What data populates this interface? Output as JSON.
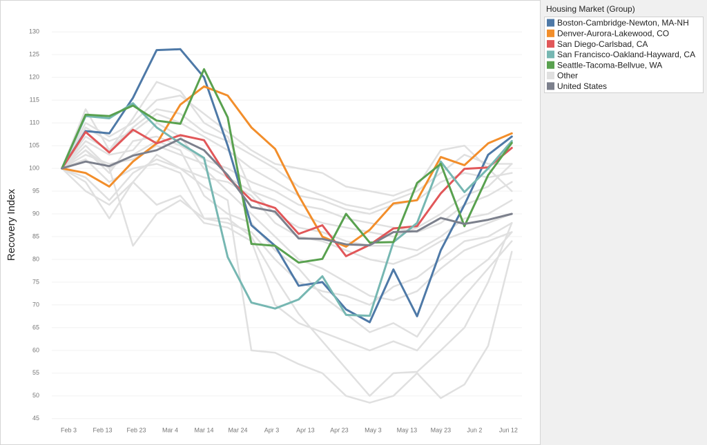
{
  "chart_data": {
    "type": "line",
    "y_axis_label": "Recovery Index",
    "legend_title": "Housing Market (Group)",
    "legend": "right",
    "grid": true,
    "x": [
      "Feb 1",
      "Feb 8",
      "Feb 15",
      "Feb 22",
      "Feb 29",
      "Mar 7",
      "Mar 14",
      "Mar 21",
      "Mar 28",
      "Apr 4",
      "Apr 11",
      "Apr 18",
      "Apr 25",
      "May 2",
      "May 9",
      "May 16",
      "May 23",
      "May 30",
      "Jun 6",
      "Jun 13"
    ],
    "xlim": [
      "Jan 29",
      "Jun 16"
    ],
    "xticks": [
      "Feb 3",
      "Feb 13",
      "Feb 23",
      "Mar 4",
      "Mar 14",
      "Mar 24",
      "Apr 3",
      "Apr 13",
      "Apr 23",
      "May 3",
      "May 13",
      "May 23",
      "Jun 2",
      "Jun 12"
    ],
    "ylim": [
      43,
      132
    ],
    "yticks": [
      45,
      50,
      55,
      60,
      65,
      70,
      75,
      80,
      85,
      90,
      95,
      100,
      105,
      110,
      115,
      120,
      125,
      130
    ],
    "series": [
      {
        "name": "Boston-Cambridge-Newton, MA-NH",
        "color": "#4e79a7",
        "values": [
          100,
          108.2,
          107.7,
          115.5,
          126,
          126.2,
          120,
          105,
          87.5,
          83,
          74.2,
          75,
          69,
          66.2,
          77.8,
          67.5,
          82,
          92,
          103,
          107
        ]
      },
      {
        "name": "Denver-Aurora-Lakewood, CO",
        "color": "#f28e2b",
        "values": [
          100,
          99,
          96,
          101.5,
          105.5,
          114,
          118,
          116,
          109,
          104.3,
          94,
          85,
          82.8,
          86.5,
          92.3,
          93,
          102.5,
          100.7,
          105.5,
          107.7
        ]
      },
      {
        "name": "San Diego-Carlsbad, CA",
        "color": "#e15759",
        "values": [
          100,
          108,
          103.5,
          108.5,
          105.5,
          107.3,
          106.2,
          98,
          93,
          91.3,
          85.6,
          87.5,
          80.7,
          83.2,
          86.8,
          87.3,
          94.5,
          99.9,
          100.2,
          104.5
        ]
      },
      {
        "name": "San Francisco-Oakland-Hayward, CA",
        "color": "#76b7b2",
        "values": [
          100,
          111.5,
          111,
          114.3,
          109,
          105.5,
          102.3,
          80.5,
          70.5,
          69.2,
          71.2,
          76.3,
          67.8,
          67.6,
          83.8,
          88,
          101.5,
          94.8,
          100,
          106
        ]
      },
      {
        "name": "Seattle-Tacoma-Bellvue, WA",
        "color": "#59a14f",
        "values": [
          100,
          111.8,
          111.5,
          113.8,
          110.5,
          109.8,
          121.8,
          111.2,
          83.4,
          83,
          79.3,
          80.1,
          90,
          83.7,
          83.8,
          96.8,
          101,
          87.3,
          98.5,
          105.6
        ]
      },
      {
        "name": "Other",
        "color": "#e0e0e0",
        "values": [
          100,
          113,
          104,
          111,
          119,
          117,
          110,
          107,
          95,
          93,
          90,
          88,
          87,
          86,
          85,
          87,
          90,
          94,
          96,
          101
        ]
      },
      {
        "name": "Other",
        "color": "#e0e0e0",
        "values": [
          100,
          97,
          89,
          97,
          103,
          100,
          96,
          93,
          60,
          59.5,
          57,
          55,
          50,
          48.5,
          50,
          55,
          49.5,
          52.5,
          61,
          81.7
        ]
      },
      {
        "name": "Other",
        "color": "#e0e0e0",
        "values": [
          100,
          105,
          100,
          83,
          90,
          93,
          89,
          89,
          85,
          76,
          68,
          62,
          56,
          50,
          55,
          55.3,
          60,
          65,
          75,
          88
        ]
      },
      {
        "name": "Other",
        "color": "#e0e0e0",
        "values": [
          100,
          104,
          99,
          106,
          107,
          105,
          102,
          100,
          97,
          95,
          92,
          91,
          89,
          88,
          87,
          86,
          88,
          92,
          94,
          97
        ]
      },
      {
        "name": "Other",
        "color": "#e0e0e0",
        "values": [
          100,
          109,
          106,
          108,
          112,
          110,
          107,
          104,
          100,
          97,
          94,
          93,
          91,
          90,
          92,
          93,
          97,
          99,
          98,
          99
        ]
      },
      {
        "name": "Other",
        "color": "#e0e0e0",
        "values": [
          100,
          102,
          97,
          100,
          101,
          99,
          89,
          88,
          86,
          80,
          75,
          73,
          72,
          70,
          74,
          76,
          80,
          84,
          85,
          88
        ]
      },
      {
        "name": "Other",
        "color": "#e0e0e0",
        "values": [
          100,
          106,
          103,
          104,
          110,
          107,
          100,
          95,
          90,
          85,
          80,
          78,
          75,
          72,
          71,
          73,
          78,
          82,
          84,
          86
        ]
      },
      {
        "name": "Other",
        "color": "#e0e0e0",
        "values": [
          100,
          98,
          93,
          99,
          102,
          100,
          98,
          97,
          94,
          88,
          85,
          84,
          82,
          80,
          79,
          81,
          84,
          86,
          88,
          90
        ]
      },
      {
        "name": "Other",
        "color": "#e0e0e0",
        "values": [
          100,
          107,
          104,
          109,
          113,
          112,
          108,
          106,
          103,
          100,
          96,
          94,
          92,
          91,
          93,
          95,
          99,
          103,
          101,
          101
        ]
      },
      {
        "name": "Other",
        "color": "#e0e0e0",
        "values": [
          100,
          103,
          101,
          102,
          105,
          103,
          101,
          98,
          95,
          90,
          87,
          86,
          84,
          83,
          83,
          82,
          85,
          89,
          90,
          93
        ]
      },
      {
        "name": "Other",
        "color": "#e0e0e0",
        "values": [
          100,
          104,
          100,
          103,
          106,
          104,
          94,
          90,
          88,
          82,
          78,
          72,
          68,
          64,
          66,
          63,
          71,
          76,
          80,
          86
        ]
      },
      {
        "name": "Other",
        "color": "#e0e0e0",
        "values": [
          100,
          110,
          107,
          110,
          115,
          116,
          112,
          108,
          104,
          101,
          100,
          99,
          96,
          95,
          94,
          96,
          104,
          105,
          100,
          95
        ]
      },
      {
        "name": "Other",
        "color": "#e0e0e0",
        "values": [
          100,
          95,
          92,
          97,
          92,
          94,
          88,
          87,
          84,
          70,
          66,
          64,
          62,
          60,
          62,
          60,
          66,
          72,
          78,
          84
        ]
      },
      {
        "name": "United States",
        "color": "#7c808c",
        "values": [
          100,
          101.5,
          100.5,
          102.8,
          104,
          106.5,
          104,
          98.5,
          91.5,
          90.5,
          84.6,
          84.5,
          83.3,
          83.1,
          86,
          86.2,
          89.1,
          87.8,
          88.7,
          90
        ]
      }
    ]
  }
}
